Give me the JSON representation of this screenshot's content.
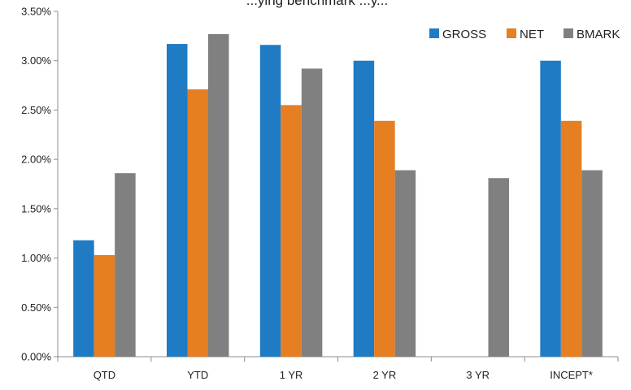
{
  "chart_data": {
    "type": "bar",
    "title": "...ying benchmark ...y...",
    "categories": [
      "QTD",
      "YTD",
      "1 YR",
      "2 YR",
      "3 YR",
      "INCEPT*"
    ],
    "series": [
      {
        "name": "GROSS",
        "color": "#1f7bc4",
        "values": [
          0.0118,
          0.0317,
          0.0316,
          0.03,
          null,
          0.03
        ]
      },
      {
        "name": "NET",
        "color": "#e67e22",
        "values": [
          0.0103,
          0.0271,
          0.0255,
          0.0239,
          null,
          0.0239
        ]
      },
      {
        "name": "BMARK",
        "color": "#808080",
        "values": [
          0.0186,
          0.0327,
          0.0292,
          0.0189,
          0.0181,
          0.0189
        ]
      }
    ],
    "ylim": [
      0,
      0.035
    ],
    "yticks": [
      "0.00%",
      "0.50%",
      "1.00%",
      "1.50%",
      "2.00%",
      "2.50%",
      "3.00%",
      "3.50%"
    ],
    "grid": false,
    "legend_position": "top-right",
    "xlabel": "",
    "ylabel": ""
  }
}
